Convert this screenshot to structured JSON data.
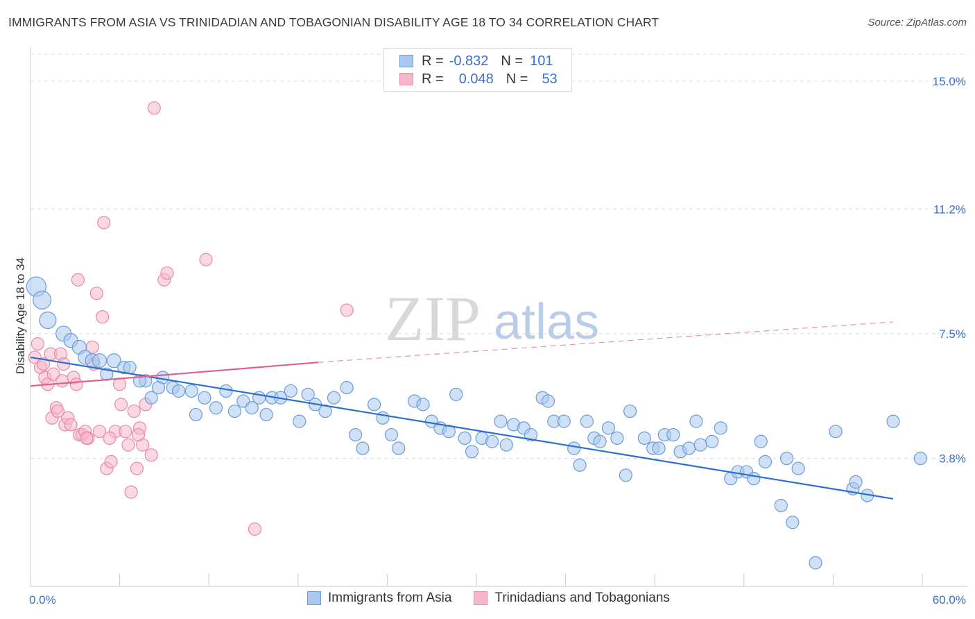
{
  "title": "IMMIGRANTS FROM ASIA VS TRINIDADIAN AND TOBAGONIAN DISABILITY AGE 18 TO 34 CORRELATION CHART",
  "source": "Source: ZipAtlas.com",
  "watermark": {
    "zip": "ZIP",
    "atlas": "atlas"
  },
  "legend": {
    "r_label": "R =",
    "n_label": "N =",
    "rows": [
      {
        "r": "-0.832",
        "n": "101"
      },
      {
        "r": "0.048",
        "n": "53"
      }
    ]
  },
  "bottom_legend": [
    "Immigrants from Asia",
    "Trinidadians and Tobagonians"
  ],
  "colors": {
    "blue_fill": "#aac8ee",
    "blue_stroke": "#6a9bd8",
    "blue_line": "#2a6fd0",
    "pink_fill": "#f5b8cb",
    "pink_stroke": "#e889a8",
    "pink_line": "#e0608a",
    "tick_text": "#3b6fc9",
    "grid": "#dcdcdc"
  },
  "chart_data": {
    "type": "scatter",
    "title": "IMMIGRANTS FROM ASIA VS TRINIDADIAN AND TOBAGONIAN DISABILITY AGE 18 TO 34 CORRELATION CHART",
    "xlabel": "",
    "ylabel": "Disability Age 18 to 34",
    "xlim": [
      0,
      60
    ],
    "ylim": [
      0,
      15.8
    ],
    "x_tick_labels": [
      "0.0%",
      "60.0%"
    ],
    "y_ticks": [
      3.8,
      7.5,
      11.2,
      15.0
    ],
    "y_tick_labels": [
      "3.8%",
      "7.5%",
      "11.2%",
      "15.0%"
    ],
    "series": [
      {
        "name": "Immigrants from Asia",
        "r": -0.832,
        "n": 101,
        "trend": {
          "x0": 0,
          "y0": 6.8,
          "x1": 60,
          "y1": 2.6
        },
        "points": [
          [
            0.4,
            8.9,
            14
          ],
          [
            0.8,
            8.5,
            13
          ],
          [
            1.2,
            7.9,
            12
          ],
          [
            2.3,
            7.5,
            11
          ],
          [
            2.8,
            7.3,
            10
          ],
          [
            3.4,
            7.1,
            10
          ],
          [
            3.8,
            6.8,
            10
          ],
          [
            4.3,
            6.7,
            10
          ],
          [
            4.8,
            6.7,
            10
          ],
          [
            5.8,
            6.7,
            10
          ],
          [
            5.3,
            6.3,
            9
          ],
          [
            6.5,
            6.5,
            9
          ],
          [
            6.9,
            6.5,
            9
          ],
          [
            8.0,
            6.1,
            9
          ],
          [
            7.6,
            6.1,
            9
          ],
          [
            9.2,
            6.2,
            9
          ],
          [
            8.4,
            5.6,
            9
          ],
          [
            8.9,
            5.9,
            9
          ],
          [
            9.9,
            5.9,
            9
          ],
          [
            10.3,
            5.8,
            9
          ],
          [
            11.2,
            5.8,
            9
          ],
          [
            11.5,
            5.1,
            9
          ],
          [
            12.1,
            5.6,
            9
          ],
          [
            12.9,
            5.3,
            9
          ],
          [
            13.6,
            5.8,
            9
          ],
          [
            14.2,
            5.2,
            9
          ],
          [
            14.8,
            5.5,
            9
          ],
          [
            15.4,
            5.3,
            9
          ],
          [
            15.9,
            5.6,
            9
          ],
          [
            16.4,
            5.1,
            9
          ],
          [
            16.8,
            5.6,
            9
          ],
          [
            17.4,
            5.6,
            9
          ],
          [
            18.1,
            5.8,
            9
          ],
          [
            18.7,
            4.9,
            9
          ],
          [
            19.3,
            5.7,
            9
          ],
          [
            19.8,
            5.4,
            9
          ],
          [
            20.5,
            5.2,
            9
          ],
          [
            21.1,
            5.6,
            9
          ],
          [
            22.0,
            5.9,
            9
          ],
          [
            22.6,
            4.5,
            9
          ],
          [
            23.1,
            4.1,
            9
          ],
          [
            23.9,
            5.4,
            9
          ],
          [
            24.5,
            5.0,
            9
          ],
          [
            25.1,
            4.5,
            9
          ],
          [
            25.6,
            4.1,
            9
          ],
          [
            26.7,
            5.5,
            9
          ],
          [
            27.3,
            5.4,
            9
          ],
          [
            27.9,
            4.9,
            9
          ],
          [
            28.5,
            4.7,
            9
          ],
          [
            29.1,
            4.6,
            9
          ],
          [
            29.6,
            5.7,
            9
          ],
          [
            30.2,
            4.4,
            9
          ],
          [
            30.7,
            4.0,
            9
          ],
          [
            31.4,
            4.4,
            9
          ],
          [
            32.1,
            4.3,
            9
          ],
          [
            32.7,
            4.9,
            9
          ],
          [
            33.1,
            4.2,
            9
          ],
          [
            33.6,
            4.8,
            9
          ],
          [
            34.3,
            4.7,
            9
          ],
          [
            34.8,
            4.5,
            9
          ],
          [
            35.6,
            5.6,
            9
          ],
          [
            36.0,
            5.5,
            9
          ],
          [
            36.4,
            4.9,
            9
          ],
          [
            37.1,
            4.9,
            9
          ],
          [
            37.8,
            4.1,
            9
          ],
          [
            38.2,
            3.6,
            9
          ],
          [
            38.7,
            4.9,
            9
          ],
          [
            39.2,
            4.4,
            9
          ],
          [
            39.6,
            4.3,
            9
          ],
          [
            40.2,
            4.7,
            9
          ],
          [
            40.8,
            4.4,
            9
          ],
          [
            41.4,
            3.3,
            9
          ],
          [
            41.7,
            5.2,
            9
          ],
          [
            42.7,
            4.4,
            9
          ],
          [
            43.3,
            4.1,
            9
          ],
          [
            43.7,
            4.1,
            9
          ],
          [
            44.1,
            4.5,
            9
          ],
          [
            44.7,
            4.5,
            9
          ],
          [
            45.2,
            4.0,
            9
          ],
          [
            45.8,
            4.1,
            9
          ],
          [
            46.3,
            4.9,
            9
          ],
          [
            46.6,
            4.2,
            9
          ],
          [
            47.4,
            4.3,
            9
          ],
          [
            48.0,
            4.7,
            9
          ],
          [
            48.7,
            3.2,
            9
          ],
          [
            49.2,
            3.4,
            9
          ],
          [
            49.8,
            3.4,
            9
          ],
          [
            50.3,
            3.2,
            9
          ],
          [
            50.8,
            4.3,
            9
          ],
          [
            51.1,
            3.7,
            9
          ],
          [
            52.2,
            2.4,
            9
          ],
          [
            52.6,
            3.8,
            9
          ],
          [
            53.0,
            1.9,
            9
          ],
          [
            53.4,
            3.5,
            9
          ],
          [
            54.6,
            0.7,
            9
          ],
          [
            56.0,
            4.6,
            9
          ],
          [
            57.2,
            2.9,
            9
          ],
          [
            57.4,
            3.1,
            9
          ],
          [
            58.2,
            2.7,
            9
          ],
          [
            60.0,
            4.9,
            9
          ],
          [
            61.9,
            3.8,
            9
          ]
        ]
      },
      {
        "name": "Trinidadians and Tobagonians",
        "r": 0.048,
        "n": 53,
        "trend": {
          "x0": 0,
          "y0": 5.95,
          "x1": 20,
          "y1": 6.65,
          "dash_to_x": 60,
          "dash_to_y": 7.85
        },
        "points": [
          [
            0.3,
            6.8,
            9
          ],
          [
            0.5,
            7.2,
            9
          ],
          [
            0.7,
            6.5,
            9
          ],
          [
            0.9,
            6.6,
            9
          ],
          [
            1.0,
            6.2,
            9
          ],
          [
            1.2,
            6.0,
            9
          ],
          [
            1.4,
            6.9,
            9
          ],
          [
            1.5,
            5.0,
            9
          ],
          [
            1.6,
            6.3,
            9
          ],
          [
            1.8,
            5.3,
            9
          ],
          [
            1.9,
            5.2,
            9
          ],
          [
            2.1,
            6.9,
            9
          ],
          [
            2.2,
            6.1,
            9
          ],
          [
            2.3,
            6.6,
            9
          ],
          [
            2.4,
            4.8,
            9
          ],
          [
            2.6,
            5.0,
            9
          ],
          [
            2.8,
            4.8,
            9
          ],
          [
            3.0,
            6.2,
            9
          ],
          [
            3.2,
            6.0,
            9
          ],
          [
            3.3,
            9.1,
            9
          ],
          [
            3.4,
            4.5,
            9
          ],
          [
            3.6,
            4.5,
            9
          ],
          [
            3.8,
            4.6,
            9
          ],
          [
            4.0,
            4.4,
            9
          ],
          [
            4.3,
            7.1,
            9
          ],
          [
            4.4,
            6.6,
            9
          ],
          [
            4.6,
            8.7,
            9
          ],
          [
            4.8,
            4.6,
            9
          ],
          [
            5.0,
            8.0,
            9
          ],
          [
            5.1,
            10.8,
            9
          ],
          [
            5.3,
            3.5,
            9
          ],
          [
            5.6,
            3.7,
            9
          ],
          [
            5.9,
            4.6,
            9
          ],
          [
            6.2,
            6.0,
            9
          ],
          [
            6.3,
            5.4,
            9
          ],
          [
            6.6,
            4.6,
            9
          ],
          [
            6.8,
            4.2,
            9
          ],
          [
            7.0,
            2.8,
            9
          ],
          [
            7.2,
            5.2,
            9
          ],
          [
            7.4,
            3.5,
            9
          ],
          [
            7.6,
            4.7,
            9
          ],
          [
            7.8,
            4.2,
            9
          ],
          [
            8.0,
            5.4,
            9
          ],
          [
            8.4,
            3.9,
            9
          ],
          [
            8.6,
            14.2,
            9
          ],
          [
            9.3,
            9.1,
            9
          ],
          [
            9.5,
            9.3,
            9
          ],
          [
            12.2,
            9.7,
            9
          ],
          [
            15.6,
            1.7,
            9
          ],
          [
            22.0,
            8.2,
            9
          ],
          [
            7.5,
            4.5,
            9
          ],
          [
            3.9,
            4.4,
            9
          ],
          [
            5.5,
            4.4,
            9
          ]
        ]
      }
    ]
  }
}
